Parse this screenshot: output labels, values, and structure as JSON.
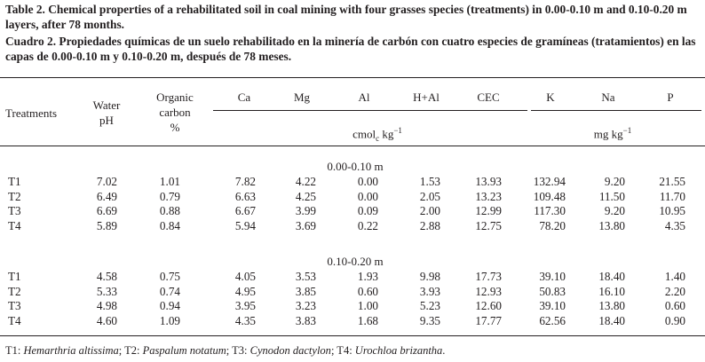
{
  "caption_en": "Table 2. Chemical properties of a rehabilitated soil in coal mining with four grasses species (treatments) in 0.00-0.10 m and 0.10-0.20 m layers, after 78 months.",
  "caption_es": "Cuadro 2. Propiedades químicas de un suelo rehabilitado en la minería de carbón con cuatro especies de gramíneas (tratamientos) en las capas de 0.00-0.10 m y 0.10-0.20 m, después de 78 meses.",
  "header": {
    "treatments": "Treatments",
    "water_ph_1": "Water",
    "water_ph_2": "pH",
    "oc_1": "Organic",
    "oc_2": "carbon",
    "oc_3": "%",
    "ca": "Ca",
    "mg": "Mg",
    "al": "Al",
    "hal": "H+Al",
    "cec": "CEC",
    "k": "K",
    "na": "Na",
    "p": "P",
    "unit_cmol_a": "cmol",
    "unit_cmol_sub": "c",
    "unit_cmol_b": " kg",
    "unit_cmol_sup": "−1",
    "unit_mg_a": "mg kg",
    "unit_mg_sup": "−1"
  },
  "layers": [
    {
      "label": "0.00-0.10 m",
      "rows": [
        [
          "T1",
          "7.02",
          "1.01",
          "7.82",
          "4.22",
          "0.00",
          "1.53",
          "13.93",
          "132.94",
          "9.20",
          "21.55"
        ],
        [
          "T2",
          "6.49",
          "0.79",
          "6.63",
          "4.25",
          "0.00",
          "2.05",
          "13.23",
          "109.48",
          "11.50",
          "11.70"
        ],
        [
          "T3",
          "6.69",
          "0.88",
          "6.67",
          "3.99",
          "0.09",
          "2.00",
          "12.99",
          "117.30",
          "9.20",
          "10.95"
        ],
        [
          "T4",
          "5.89",
          "0.84",
          "5.94",
          "3.69",
          "0.22",
          "2.88",
          "12.75",
          "78.20",
          "13.80",
          "4.35"
        ]
      ]
    },
    {
      "label": "0.10-0.20 m",
      "rows": [
        [
          "T1",
          "4.58",
          "0.75",
          "4.05",
          "3.53",
          "1.93",
          "9.98",
          "17.73",
          "39.10",
          "18.40",
          "1.40"
        ],
        [
          "T2",
          "5.33",
          "0.74",
          "4.95",
          "3.85",
          "0.60",
          "3.93",
          "12.93",
          "50.83",
          "16.10",
          "2.20"
        ],
        [
          "T3",
          "4.98",
          "0.94",
          "3.95",
          "3.23",
          "1.00",
          "5.23",
          "12.60",
          "39.10",
          "13.80",
          "0.60"
        ],
        [
          "T4",
          "4.60",
          "1.09",
          "4.35",
          "3.83",
          "1.68",
          "9.35",
          "17.77",
          "62.56",
          "18.40",
          "0.90"
        ]
      ]
    }
  ],
  "footnote": {
    "t1": "T1: ",
    "t1_sp": "Hemarthria altissima",
    "t2": "; T2: ",
    "t2_sp": "Paspalum notatum",
    "t3": "; T3: ",
    "t3_sp": "Cynodon dactylon",
    "t4": "; T4: ",
    "t4_sp": "Urochloa brizantha",
    "end": "."
  }
}
